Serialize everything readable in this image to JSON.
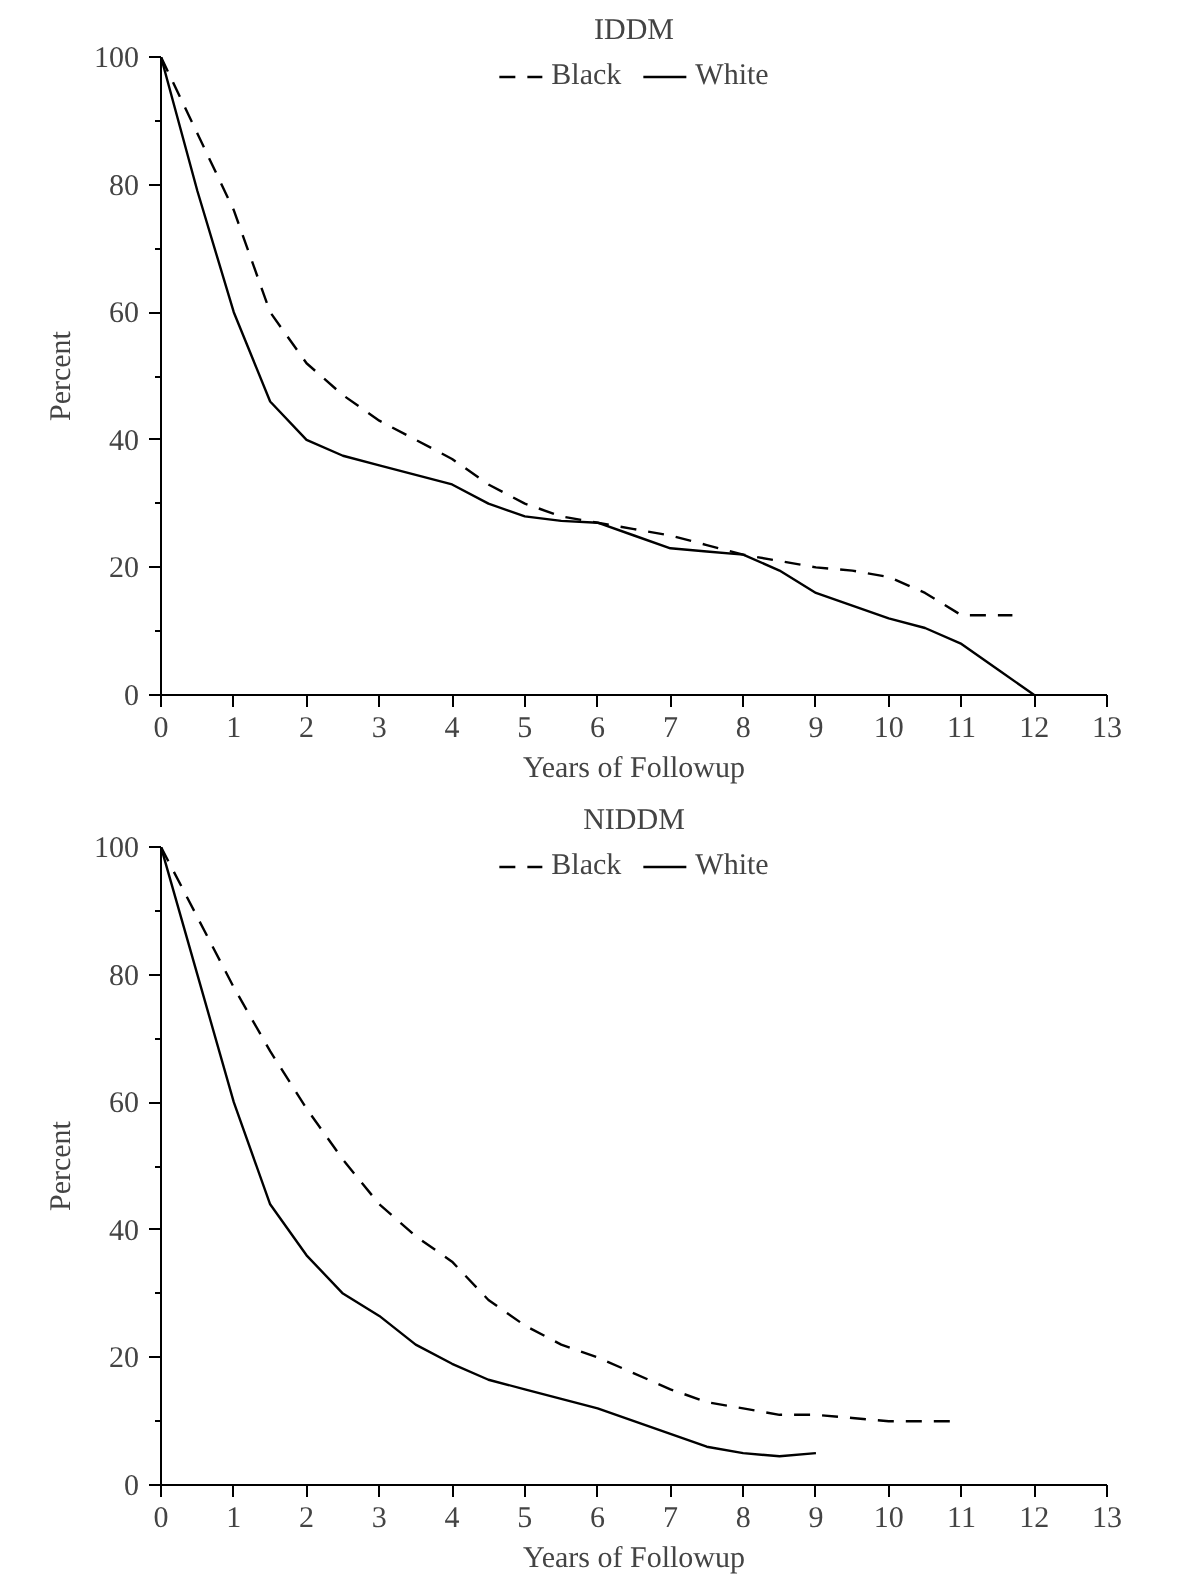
{
  "chart_data": [
    {
      "type": "line",
      "title": "IDDM",
      "xlabel": "Years of Followup",
      "ylabel": "Percent",
      "xlim": [
        0,
        13
      ],
      "xticks": [
        0,
        1,
        2,
        3,
        4,
        5,
        6,
        7,
        8,
        9,
        10,
        11,
        12,
        13
      ],
      "ylim": [
        0,
        100
      ],
      "yticks": [
        0,
        {
          "value": 10,
          "label": null
        },
        20,
        {
          "value": 30,
          "label": null
        },
        40,
        {
          "value": 50,
          "label": null
        },
        60,
        {
          "value": 70,
          "label": null
        },
        80,
        {
          "value": 90,
          "label": null
        },
        100
      ],
      "grid": false,
      "legend": "top",
      "marker": "none",
      "series": [
        {
          "name": "Black",
          "color": "#000000",
          "line_style": "dashed",
          "x": [
            0,
            0.5,
            1,
            1.5,
            2,
            2.5,
            3,
            3.5,
            4,
            4.5,
            5,
            5.5,
            6,
            6.5,
            7,
            7.5,
            8,
            8.5,
            9,
            9.5,
            10,
            10.5,
            11,
            11.7
          ],
          "values": [
            100,
            88,
            76,
            60,
            52,
            47,
            43,
            40,
            37,
            33,
            30,
            28,
            27,
            26,
            25,
            23.5,
            22,
            21,
            20,
            19.5,
            18.5,
            16,
            12.5,
            12.5
          ]
        },
        {
          "name": "White",
          "color": "#000000",
          "line_style": "solid",
          "x": [
            0,
            0.5,
            1,
            1.5,
            2,
            2.5,
            3,
            3.5,
            4,
            4.5,
            5,
            5.5,
            6,
            6.5,
            7,
            7.5,
            8,
            8.5,
            9,
            9.5,
            10,
            10.5,
            11,
            11.5,
            12
          ],
          "values": [
            100,
            79,
            60,
            46,
            40,
            37.5,
            36,
            34.5,
            33,
            30,
            28,
            27.3,
            27,
            25,
            23,
            22.5,
            22,
            19.5,
            16,
            14,
            12,
            10.5,
            8,
            4,
            0
          ]
        }
      ]
    },
    {
      "type": "line",
      "title": "NIDDM",
      "xlabel": "Years of Followup",
      "ylabel": "Percent",
      "xlim": [
        0,
        13
      ],
      "xticks": [
        0,
        1,
        2,
        3,
        4,
        5,
        6,
        7,
        8,
        9,
        10,
        11,
        12,
        13
      ],
      "ylim": [
        0,
        100
      ],
      "yticks": [
        0,
        {
          "value": 10,
          "label": null
        },
        20,
        {
          "value": 30,
          "label": null
        },
        40,
        {
          "value": 50,
          "label": null
        },
        60,
        {
          "value": 70,
          "label": null
        },
        80,
        {
          "value": 90,
          "label": null
        },
        100
      ],
      "grid": false,
      "legend": "top",
      "marker": "none",
      "series": [
        {
          "name": "Black",
          "color": "#000000",
          "line_style": "dashed",
          "x": [
            0,
            0.5,
            1,
            1.5,
            2,
            2.5,
            3,
            3.5,
            4,
            4.5,
            5,
            5.5,
            6,
            6.5,
            7,
            7.5,
            8,
            8.5,
            9,
            9.5,
            10,
            10.5,
            10.9
          ],
          "values": [
            100,
            89,
            78,
            68,
            59,
            51,
            44,
            39,
            35,
            29,
            25,
            22,
            20,
            17.5,
            15,
            13,
            12,
            11,
            11,
            10.5,
            10,
            10,
            10
          ]
        },
        {
          "name": "White",
          "color": "#000000",
          "line_style": "solid",
          "x": [
            0,
            0.5,
            1,
            1.5,
            2,
            2.5,
            3,
            3.5,
            4,
            4.5,
            5,
            5.5,
            6,
            6.5,
            7,
            7.5,
            8,
            8.5,
            9
          ],
          "values": [
            100,
            80,
            60,
            44,
            36,
            30,
            26.5,
            22,
            19,
            16.5,
            15,
            13.5,
            12,
            10,
            8,
            6,
            5,
            4.5,
            5
          ]
        }
      ]
    }
  ]
}
